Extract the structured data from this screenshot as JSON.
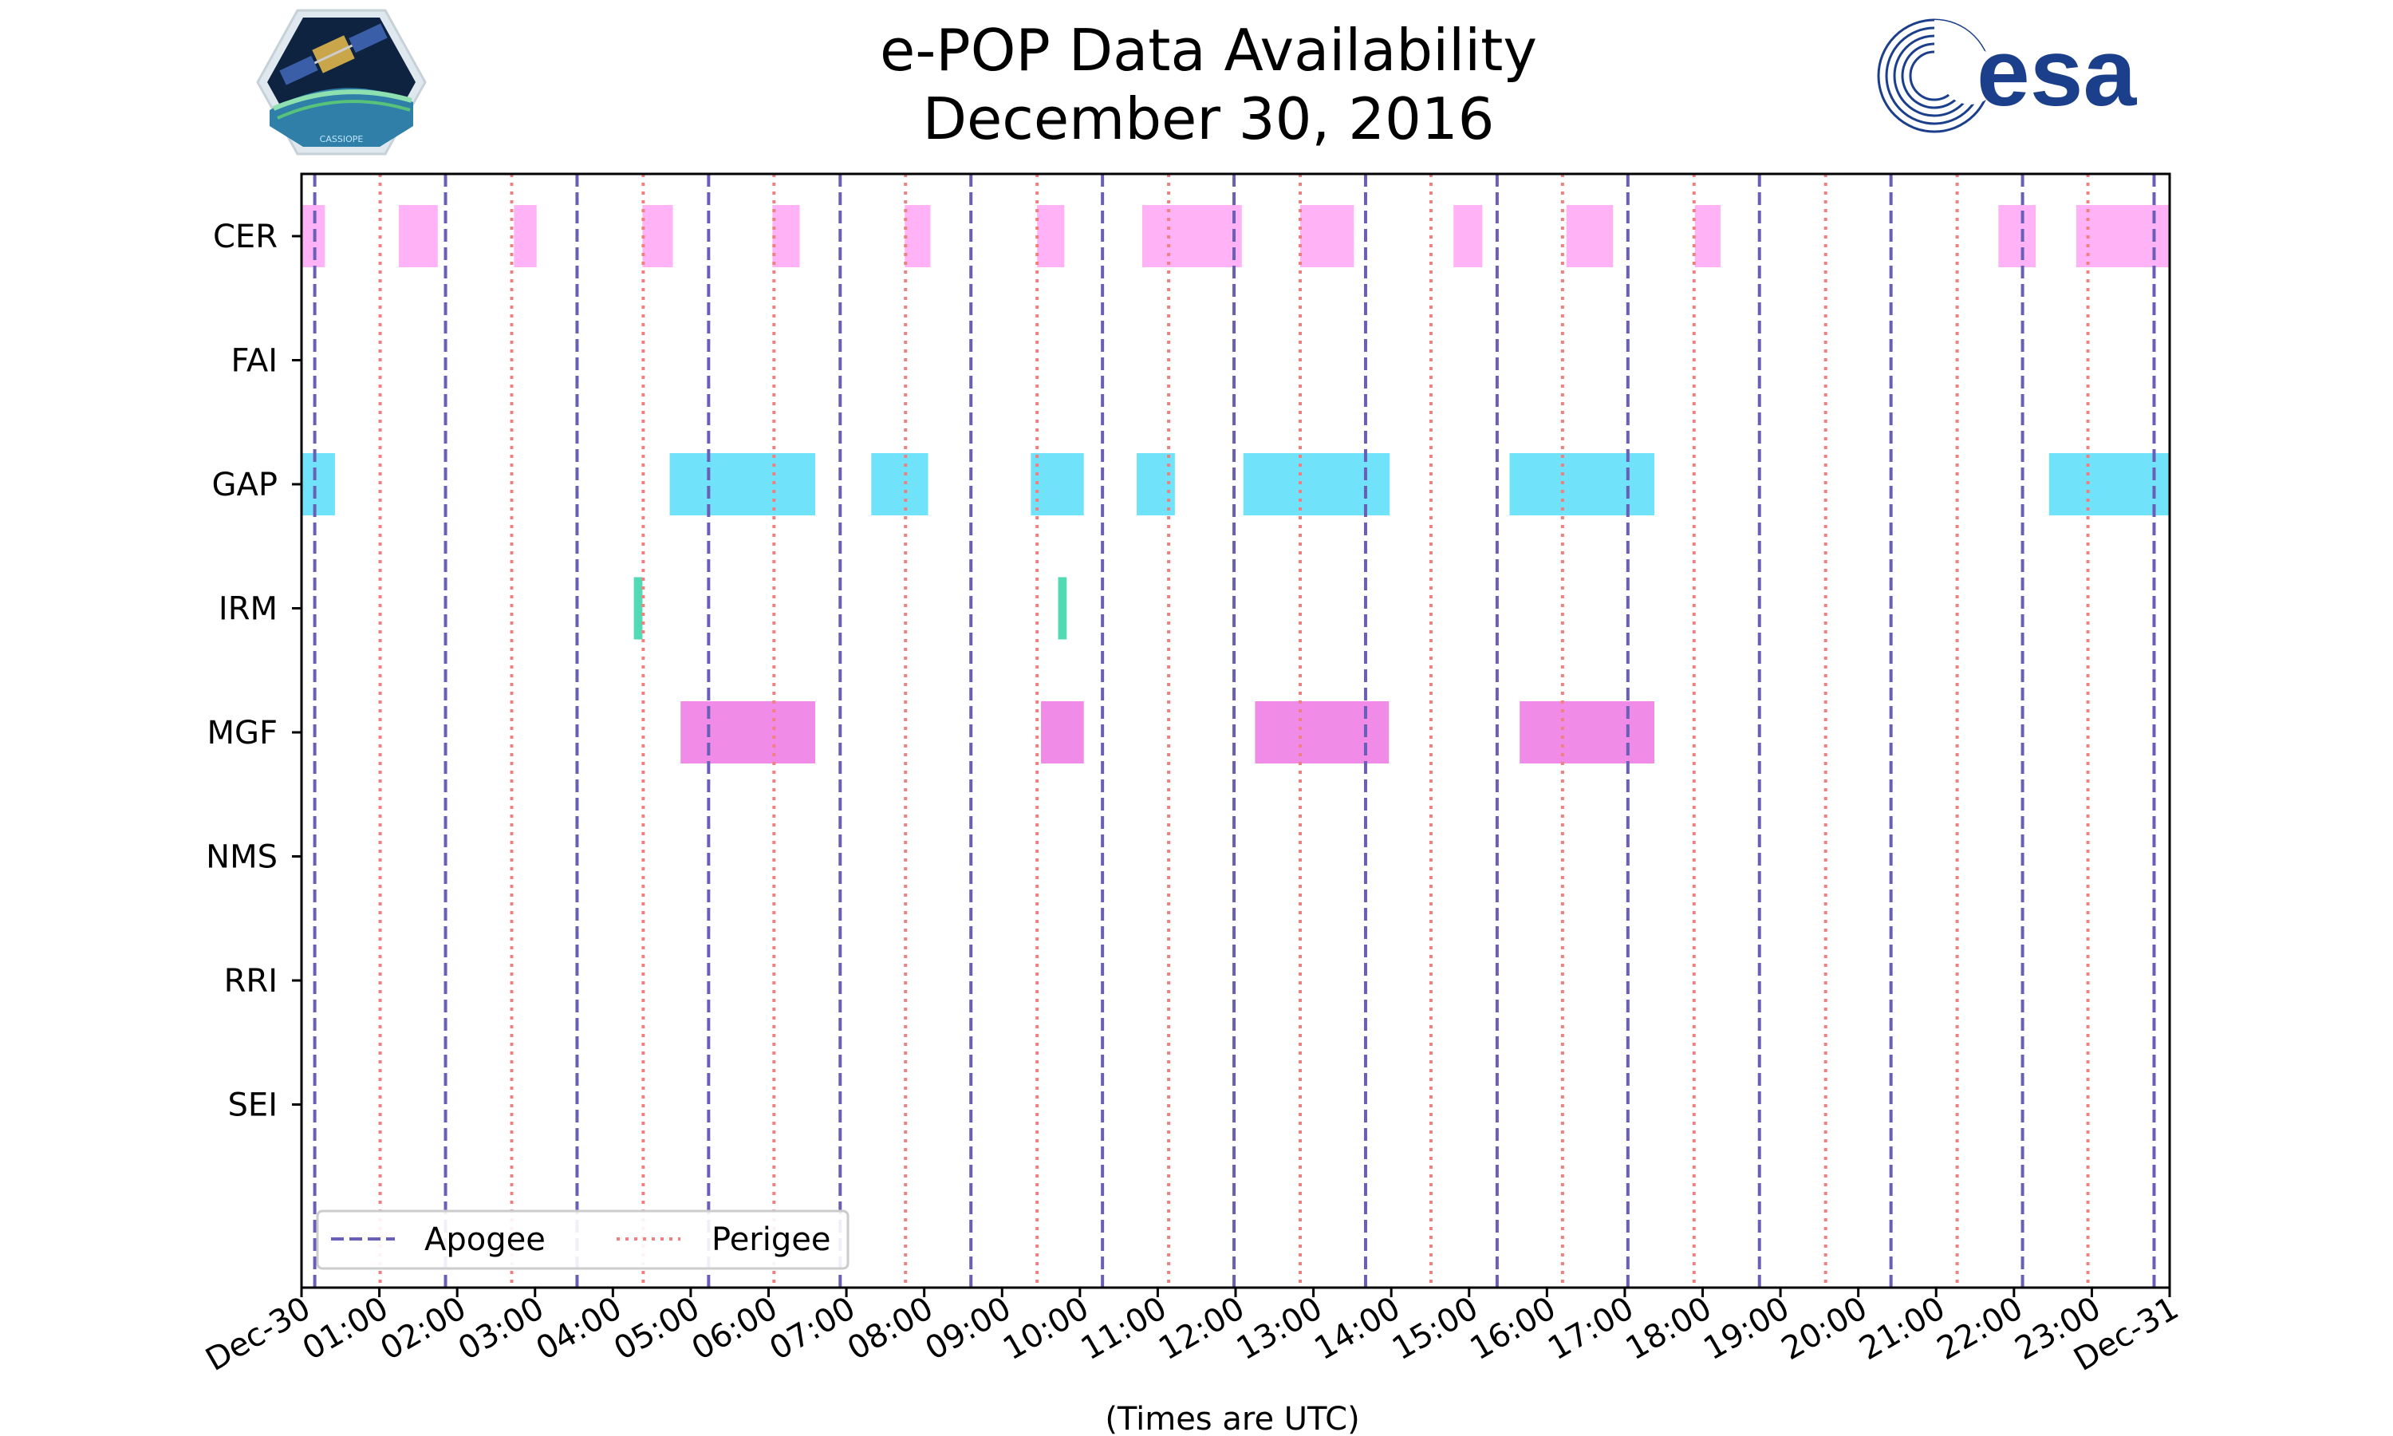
{
  "chart_data": {
    "type": "timeline",
    "title_line1": "e-POP Data Availability",
    "title_line2": "December 30, 2016",
    "xlabel": "(Times are UTC)",
    "x_range_hours": [
      0,
      24
    ],
    "x_tick_labels": [
      "Dec-30",
      "01:00",
      "02:00",
      "03:00",
      "04:00",
      "05:00",
      "06:00",
      "07:00",
      "08:00",
      "09:00",
      "10:00",
      "11:00",
      "12:00",
      "13:00",
      "14:00",
      "15:00",
      "16:00",
      "17:00",
      "18:00",
      "19:00",
      "20:00",
      "21:00",
      "22:00",
      "23:00",
      "Dec-31"
    ],
    "instruments": [
      "CER",
      "FAI",
      "GAP",
      "IRM",
      "MGF",
      "NMS",
      "RRI",
      "SEI"
    ],
    "apogee_times": [
      0.17,
      1.85,
      3.54,
      5.23,
      6.92,
      8.6,
      10.29,
      11.98,
      13.67,
      15.36,
      17.04,
      18.73,
      20.42,
      22.11,
      23.8
    ],
    "perigee_times": [
      1.01,
      2.7,
      4.39,
      6.07,
      7.76,
      9.45,
      11.14,
      12.83,
      14.51,
      16.2,
      17.89,
      19.58,
      21.27,
      22.95
    ],
    "availability": {
      "CER": [
        [
          0.0,
          0.3
        ],
        [
          1.25,
          1.75
        ],
        [
          2.73,
          3.02
        ],
        [
          4.38,
          4.77
        ],
        [
          6.05,
          6.4
        ],
        [
          7.75,
          8.08
        ],
        [
          9.45,
          9.8
        ],
        [
          10.8,
          12.08
        ],
        [
          12.83,
          13.52
        ],
        [
          14.8,
          15.17
        ],
        [
          16.25,
          16.85
        ],
        [
          17.9,
          18.23
        ],
        [
          21.8,
          22.28
        ],
        [
          22.8,
          24.0
        ]
      ],
      "FAI": [],
      "GAP": [
        [
          0.0,
          0.43
        ],
        [
          4.73,
          6.6
        ],
        [
          7.32,
          8.05
        ],
        [
          9.37,
          10.05
        ],
        [
          10.73,
          11.22
        ],
        [
          12.1,
          13.98
        ],
        [
          15.52,
          17.38
        ],
        [
          22.45,
          24.0
        ]
      ],
      "IRM": [
        [
          4.27,
          4.38
        ],
        [
          9.72,
          9.83
        ]
      ],
      "MGF": [
        [
          4.87,
          6.6
        ],
        [
          9.5,
          10.05
        ],
        [
          12.25,
          13.97
        ],
        [
          15.65,
          17.38
        ]
      ],
      "NMS": [],
      "RRI": [],
      "SEI": []
    },
    "instrument_colors": {
      "CER": "#ffaaf5",
      "FAI": "#cccccc",
      "GAP": "#60dff8",
      "IRM": "#3ed6ac",
      "MGF": "#f07ee6",
      "NMS": "#cccccc",
      "RRI": "#cccccc",
      "SEI": "#cccccc"
    },
    "apogee_color": "#6a5fb7",
    "perigee_color": "#f08080",
    "legend": {
      "position": "lower-left",
      "entries": [
        {
          "label": "Apogee",
          "style": "dashed"
        },
        {
          "label": "Perigee",
          "style": "dotted"
        }
      ]
    },
    "grid": false
  },
  "logos": {
    "left_icon": "cassiope-mission-logo",
    "right_icon": "esa-logo",
    "left_text": "CASSIOPE",
    "right_text": "esa"
  }
}
